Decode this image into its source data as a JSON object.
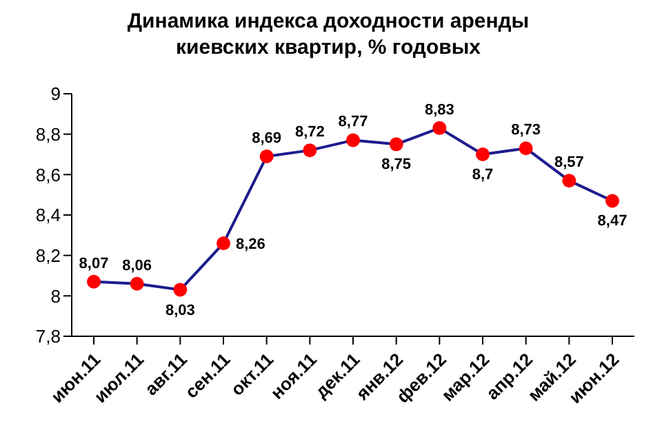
{
  "chart_data": {
    "type": "line",
    "title": "Динамика индекса доходности аренды киевских квартир, % годовых",
    "categories": [
      "июн.11",
      "июл.11",
      "авг.11",
      "сен.11",
      "окт.11",
      "ноя.11",
      "дек.11",
      "янв.12",
      "фев.12",
      "мар.12",
      "апр.12",
      "май.12",
      "июн.12"
    ],
    "series": [
      {
        "color": "#1c1c8e",
        "colors": [
          "#ff0000",
          "#ff0000",
          "#ff0000",
          "#ff0000",
          "#ff0000",
          "#ff0000",
          "#ff0000",
          "#ff0000",
          "#ff0000",
          "#ff0000",
          "#ff0000",
          "#ff0000",
          "#ff0000"
        ],
        "values": [
          8.07,
          8.06,
          8.03,
          8.26,
          8.69,
          8.72,
          8.77,
          8.75,
          8.83,
          8.7,
          8.73,
          8.57,
          8.47
        ],
        "value_labels": [
          "8,07",
          "8,06",
          "8,03",
          "8,26",
          "8,69",
          "8,72",
          "8,77",
          "8,75",
          "8,83",
          "8,7",
          "8,73",
          "8,57",
          "8,47"
        ]
      }
    ],
    "ylim": [
      7.8,
      9
    ],
    "yticks": [
      {
        "value": 7.8,
        "label": "7,8"
      },
      8,
      {
        "value": 8.2,
        "label": "8,2"
      },
      {
        "value": 8.4,
        "label": "8,4"
      },
      {
        "value": 8.6,
        "label": "8,6"
      },
      {
        "value": 8.8,
        "label": "8,8"
      },
      9
    ],
    "grid": false,
    "legend": false,
    "marker": "circle",
    "line_style": "solid"
  }
}
